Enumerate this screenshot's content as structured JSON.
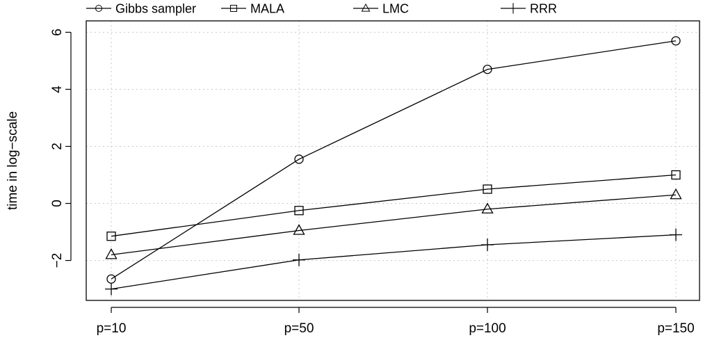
{
  "chart_data": {
    "type": "line",
    "categories": [
      "p=10",
      "p=50",
      "p=100",
      "p=150"
    ],
    "series": [
      {
        "name": "Gibbs sampler",
        "marker": "circle",
        "values": [
          -2.65,
          1.55,
          4.7,
          5.7
        ]
      },
      {
        "name": "MALA",
        "marker": "square",
        "values": [
          -1.15,
          -0.25,
          0.5,
          1.0
        ]
      },
      {
        "name": "LMC",
        "marker": "triangle",
        "values": [
          -1.8,
          -0.95,
          -0.2,
          0.3
        ]
      },
      {
        "name": "RRR",
        "marker": "plus",
        "values": [
          -3.0,
          -1.98,
          -1.45,
          -1.1
        ]
      }
    ],
    "title": "",
    "xlabel": "",
    "ylabel": "time in log−scale",
    "ylim": [
      -3.4,
      6.4
    ],
    "yticks": [
      -2,
      0,
      2,
      4,
      6
    ],
    "ytick_labels": [
      "−2",
      "0",
      "2",
      "4",
      "6"
    ],
    "grid": true,
    "legend_position": "top"
  }
}
